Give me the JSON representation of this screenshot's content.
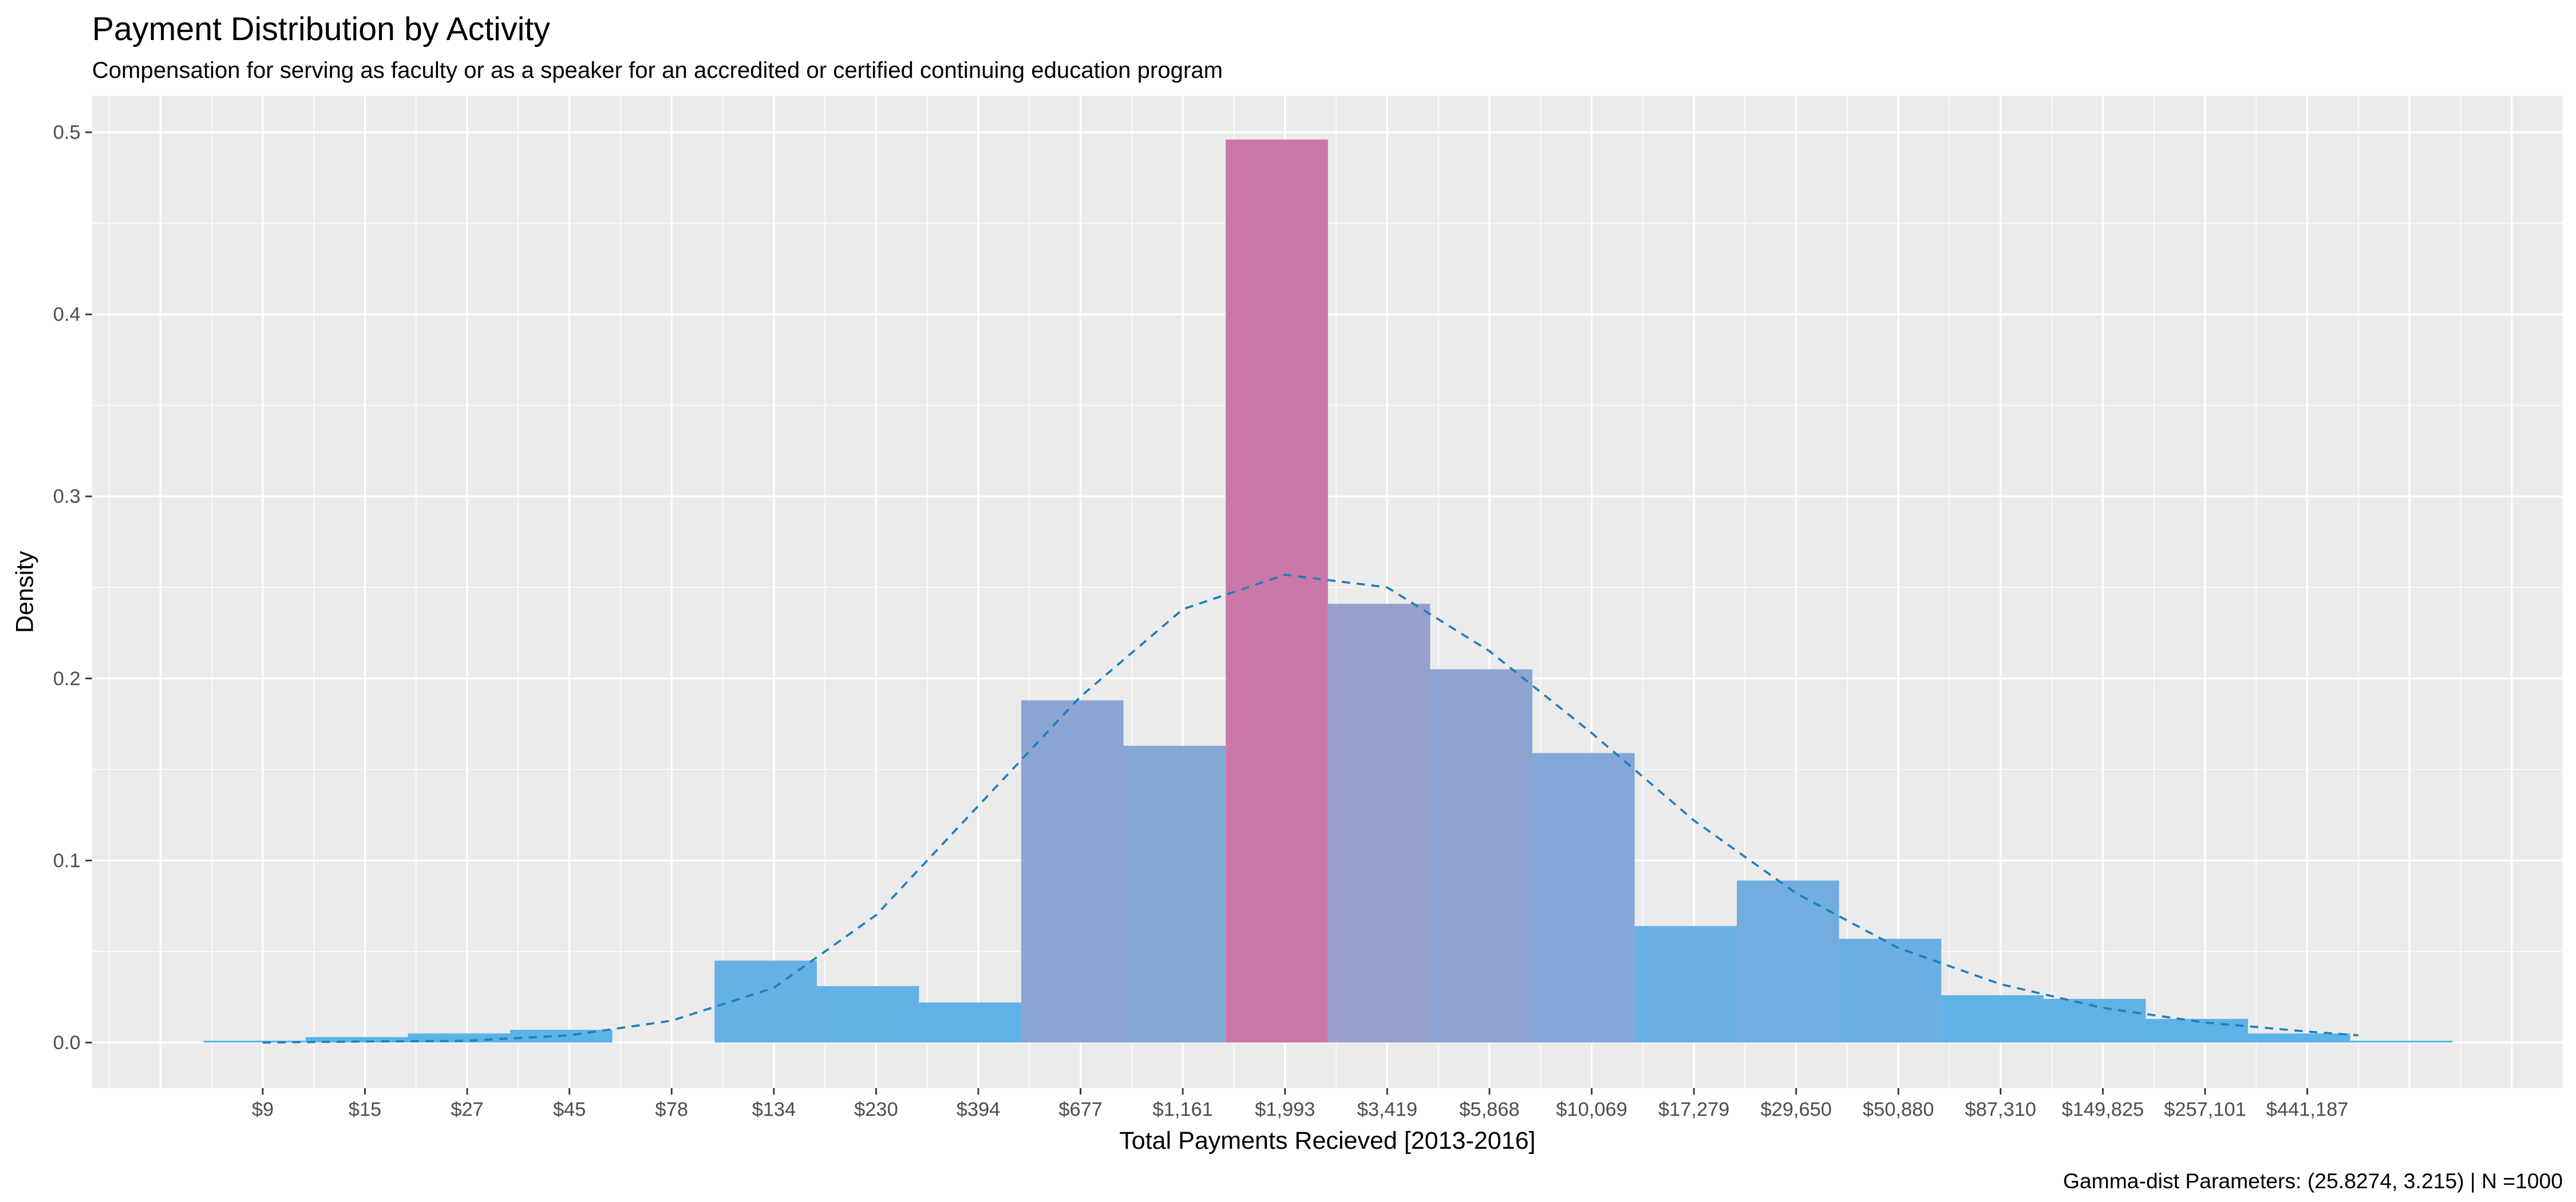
{
  "chart_data": {
    "type": "bar",
    "title": "Payment Distribution by Activity",
    "subtitle": "Compensation for serving as faculty or as a speaker for an accredited or certified continuing education program",
    "xlabel": "Total Payments Recieved [2013-2016]",
    "ylabel": "Density",
    "caption": "Gamma-dist Parameters: (25.8274, 3.215) | N =1000",
    "x_tick_labels": [
      "$9",
      "$15",
      "$27",
      "$45",
      "$78",
      "$134",
      "$230",
      "$394",
      "$677",
      "$1,161",
      "$1,993",
      "$3,419",
      "$5,868",
      "$10,069",
      "$17,279",
      "$29,650",
      "$50,880",
      "$87,310",
      "$149,825",
      "$257,101",
      "$441,187"
    ],
    "y_ticks": [
      0.0,
      0.1,
      0.2,
      0.3,
      0.4,
      0.5
    ],
    "y_tick_labels": [
      "0.0",
      "0.1",
      "0.2",
      "0.3",
      "0.4",
      "0.5"
    ],
    "ylim": [
      -0.025,
      0.52
    ],
    "xlim_tick_index": [
      -1.67,
      22.5
    ],
    "bar_start_tick_index": -0.58,
    "bar_width_ticks": 1,
    "bar_values": [
      0.001,
      0.003,
      0.005,
      0.007,
      0.0,
      0.045,
      0.031,
      0.022,
      0.188,
      0.163,
      0.496,
      0.241,
      0.205,
      0.159,
      0.064,
      0.089,
      0.057,
      0.026,
      0.024,
      0.013,
      0.005,
      0.001
    ],
    "density_curve": {
      "style": "dashed",
      "color": "#1f7fbf",
      "x_tick_index": [
        0,
        1,
        2,
        3,
        4,
        5,
        6,
        7,
        8,
        9,
        10,
        11,
        12,
        13,
        14,
        15,
        16,
        17,
        18,
        19,
        20,
        20.5
      ],
      "y": [
        0.0,
        0.0005,
        0.001,
        0.004,
        0.012,
        0.03,
        0.07,
        0.13,
        0.19,
        0.238,
        0.257,
        0.25,
        0.215,
        0.17,
        0.122,
        0.082,
        0.052,
        0.032,
        0.019,
        0.011,
        0.006,
        0.004
      ]
    },
    "colors": {
      "low": "#5AB4E9",
      "mid": "#93A2CF",
      "high": "#CB78A6",
      "panel": "#EBEBEB",
      "grid": "#FFFFFF"
    },
    "grid": true
  }
}
